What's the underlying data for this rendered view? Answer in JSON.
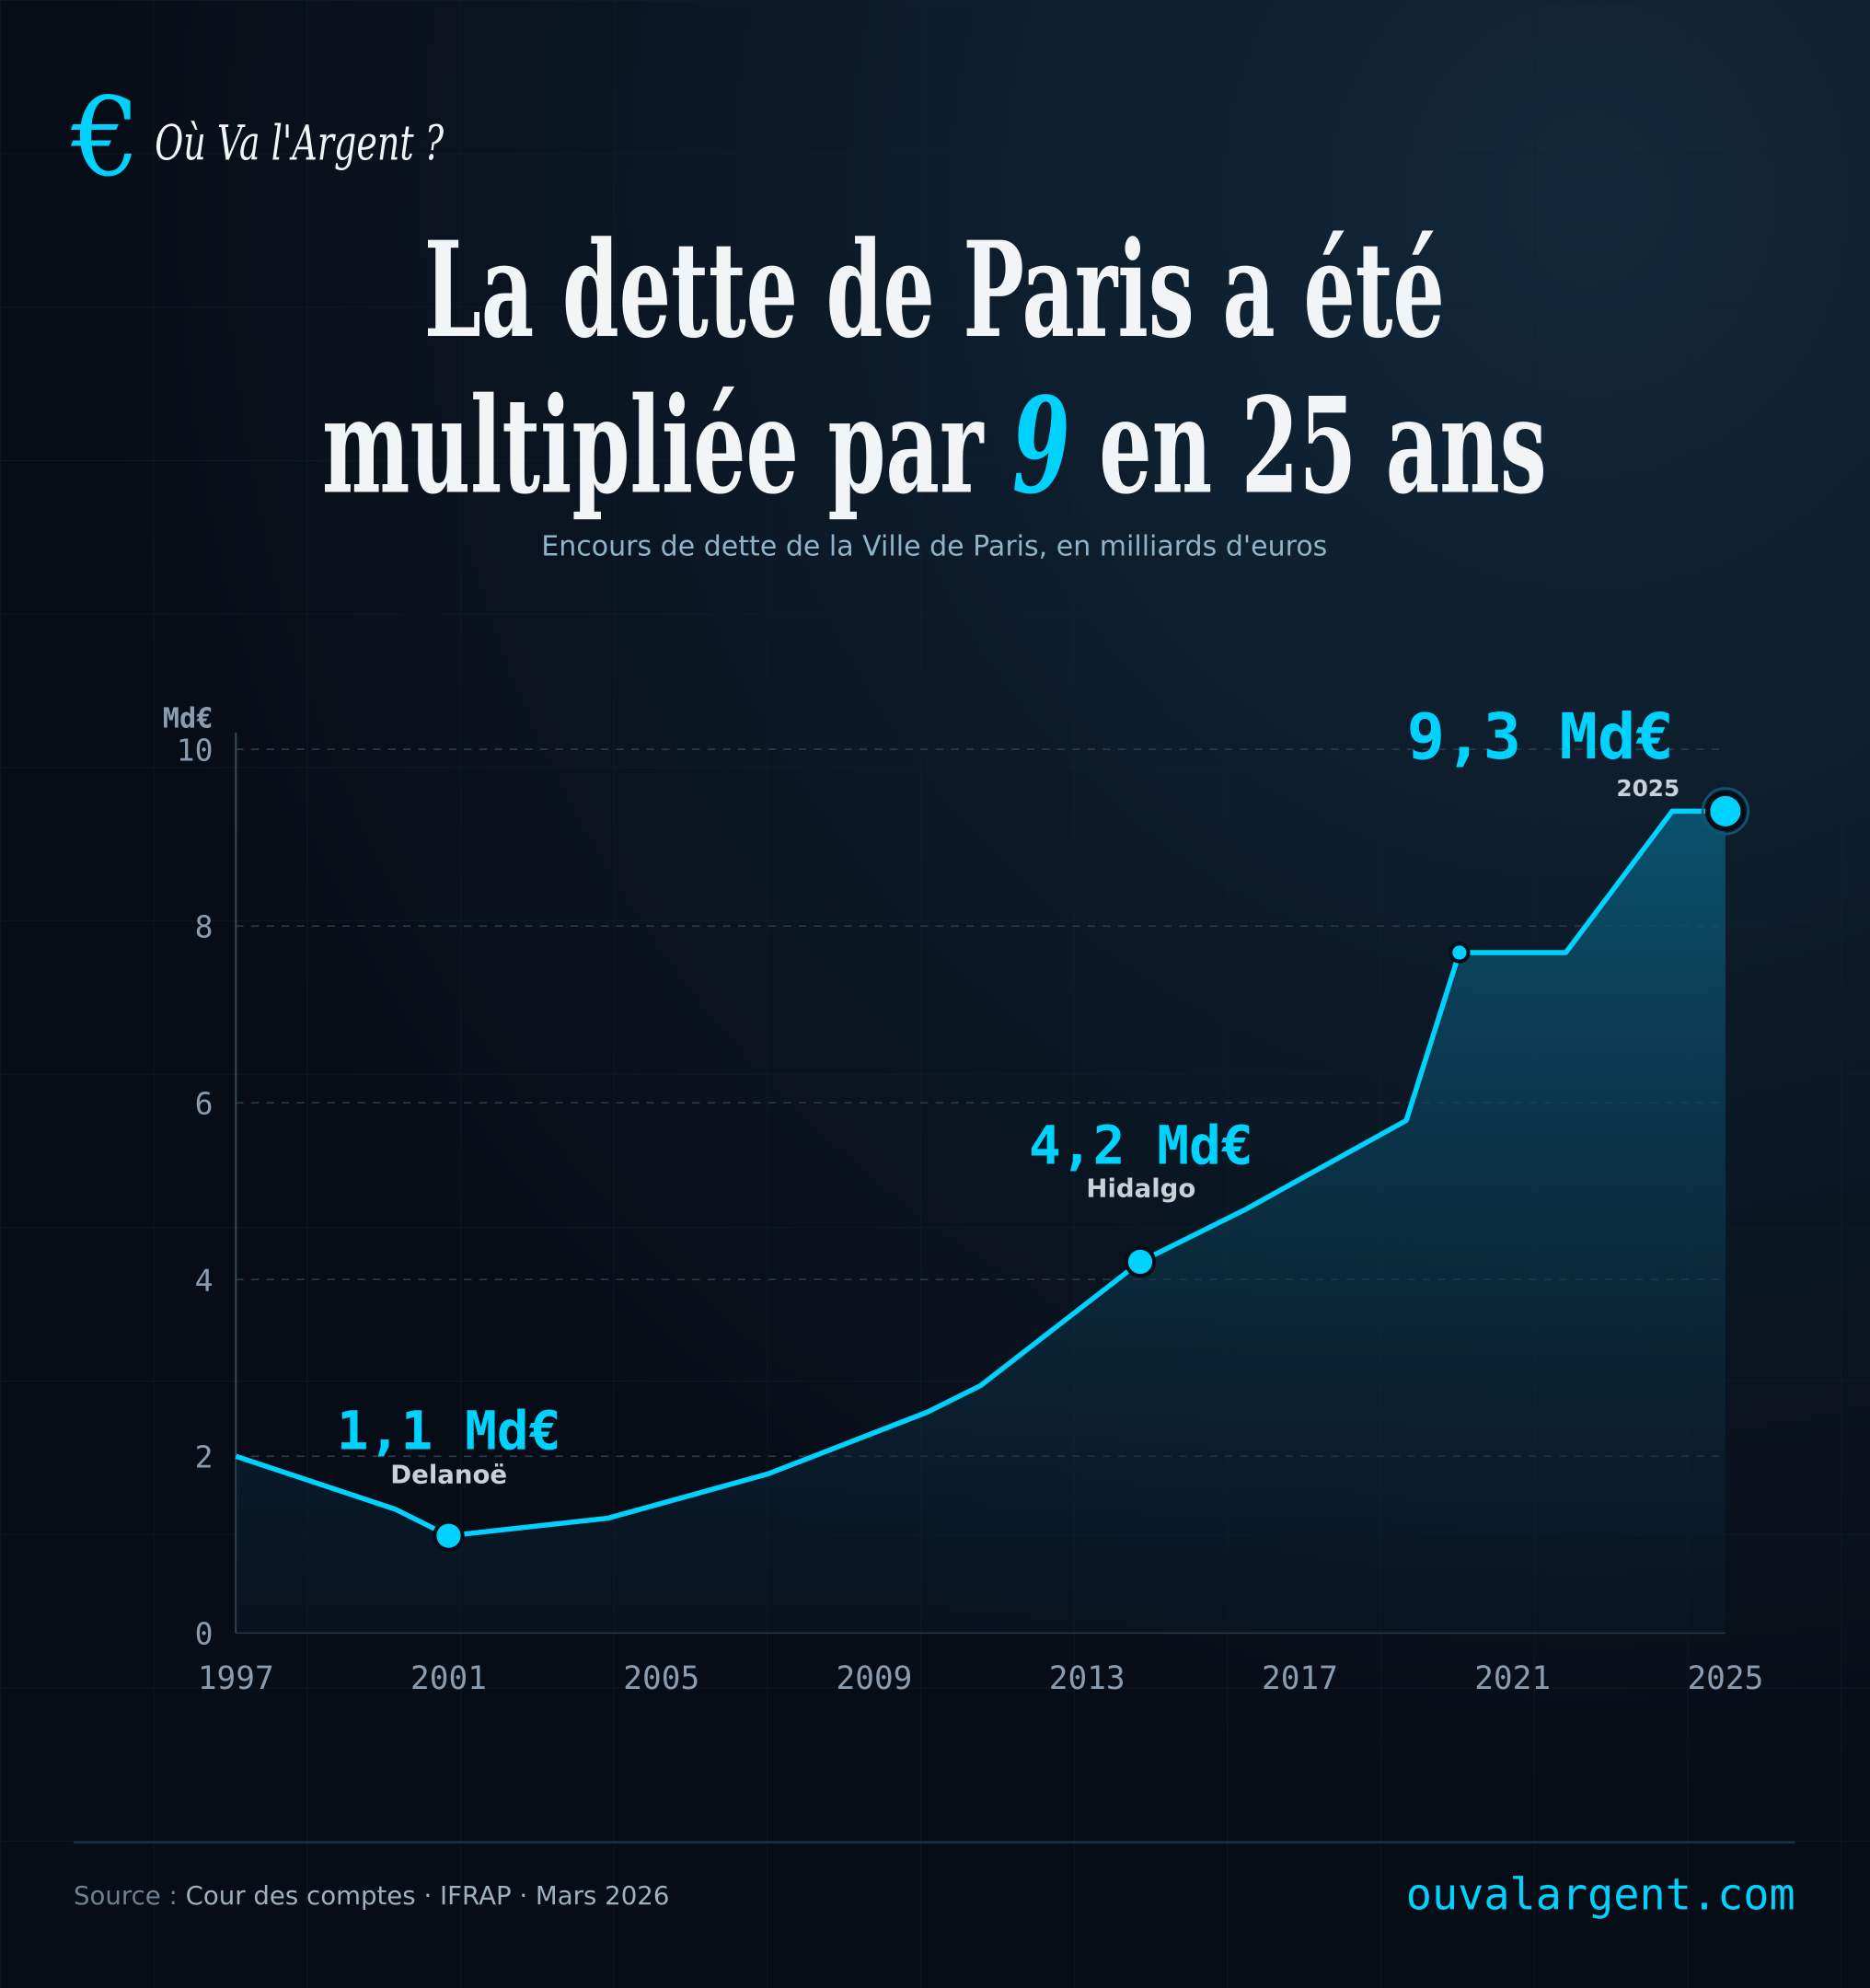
{
  "brand": {
    "logo_symbol": "€",
    "name": "Où Va l'Argent ?"
  },
  "header": {
    "title_line1": "La dette de Paris a été",
    "title_line2_a": "multipliée par ",
    "title_highlight": "9",
    "title_line2_b": " en 25 ans",
    "subtitle": "Encours de dette de la Ville de Paris, en milliards d'euros"
  },
  "footer": {
    "source_label": "Source : ",
    "source_text": "Cour des comptes · IFRAP · Mars 2026",
    "website": "ouvalargent.com"
  },
  "colors": {
    "accent": "#00d2ff",
    "background": "#070d17",
    "text": "#f2f5f8",
    "muted": "#8a9db0"
  },
  "chart_data": {
    "type": "area",
    "ylabel": "Md€",
    "ylim": [
      0,
      10
    ],
    "xlim": [
      1997,
      2025
    ],
    "y_ticks": [
      "0",
      "2",
      "4",
      "6",
      "8",
      "10"
    ],
    "x_ticks": [
      "1997",
      "2001",
      "2005",
      "2009",
      "2013",
      "2017",
      "2021",
      "2025"
    ],
    "grid": true,
    "x": [
      1997,
      2000,
      2001,
      2004,
      2007,
      2010,
      2011,
      2014,
      2016,
      2019,
      2020,
      2022,
      2024,
      2025
    ],
    "values": [
      2.0,
      1.4,
      1.1,
      1.3,
      1.8,
      2.5,
      2.8,
      4.2,
      4.8,
      5.8,
      7.7,
      7.7,
      9.3,
      9.3
    ],
    "highlights": [
      {
        "x": 2001,
        "y": 1.1,
        "value_label": "1,1 Md€",
        "sublabel": "Delanoë"
      },
      {
        "x": 2014,
        "y": 4.2,
        "value_label": "4,2 Md€",
        "sublabel": "Hidalgo"
      },
      {
        "x": 2020,
        "y": 7.7
      },
      {
        "x": 2025,
        "y": 9.3,
        "value_label": "9,3 Md€",
        "sublabel": "2025"
      }
    ]
  }
}
